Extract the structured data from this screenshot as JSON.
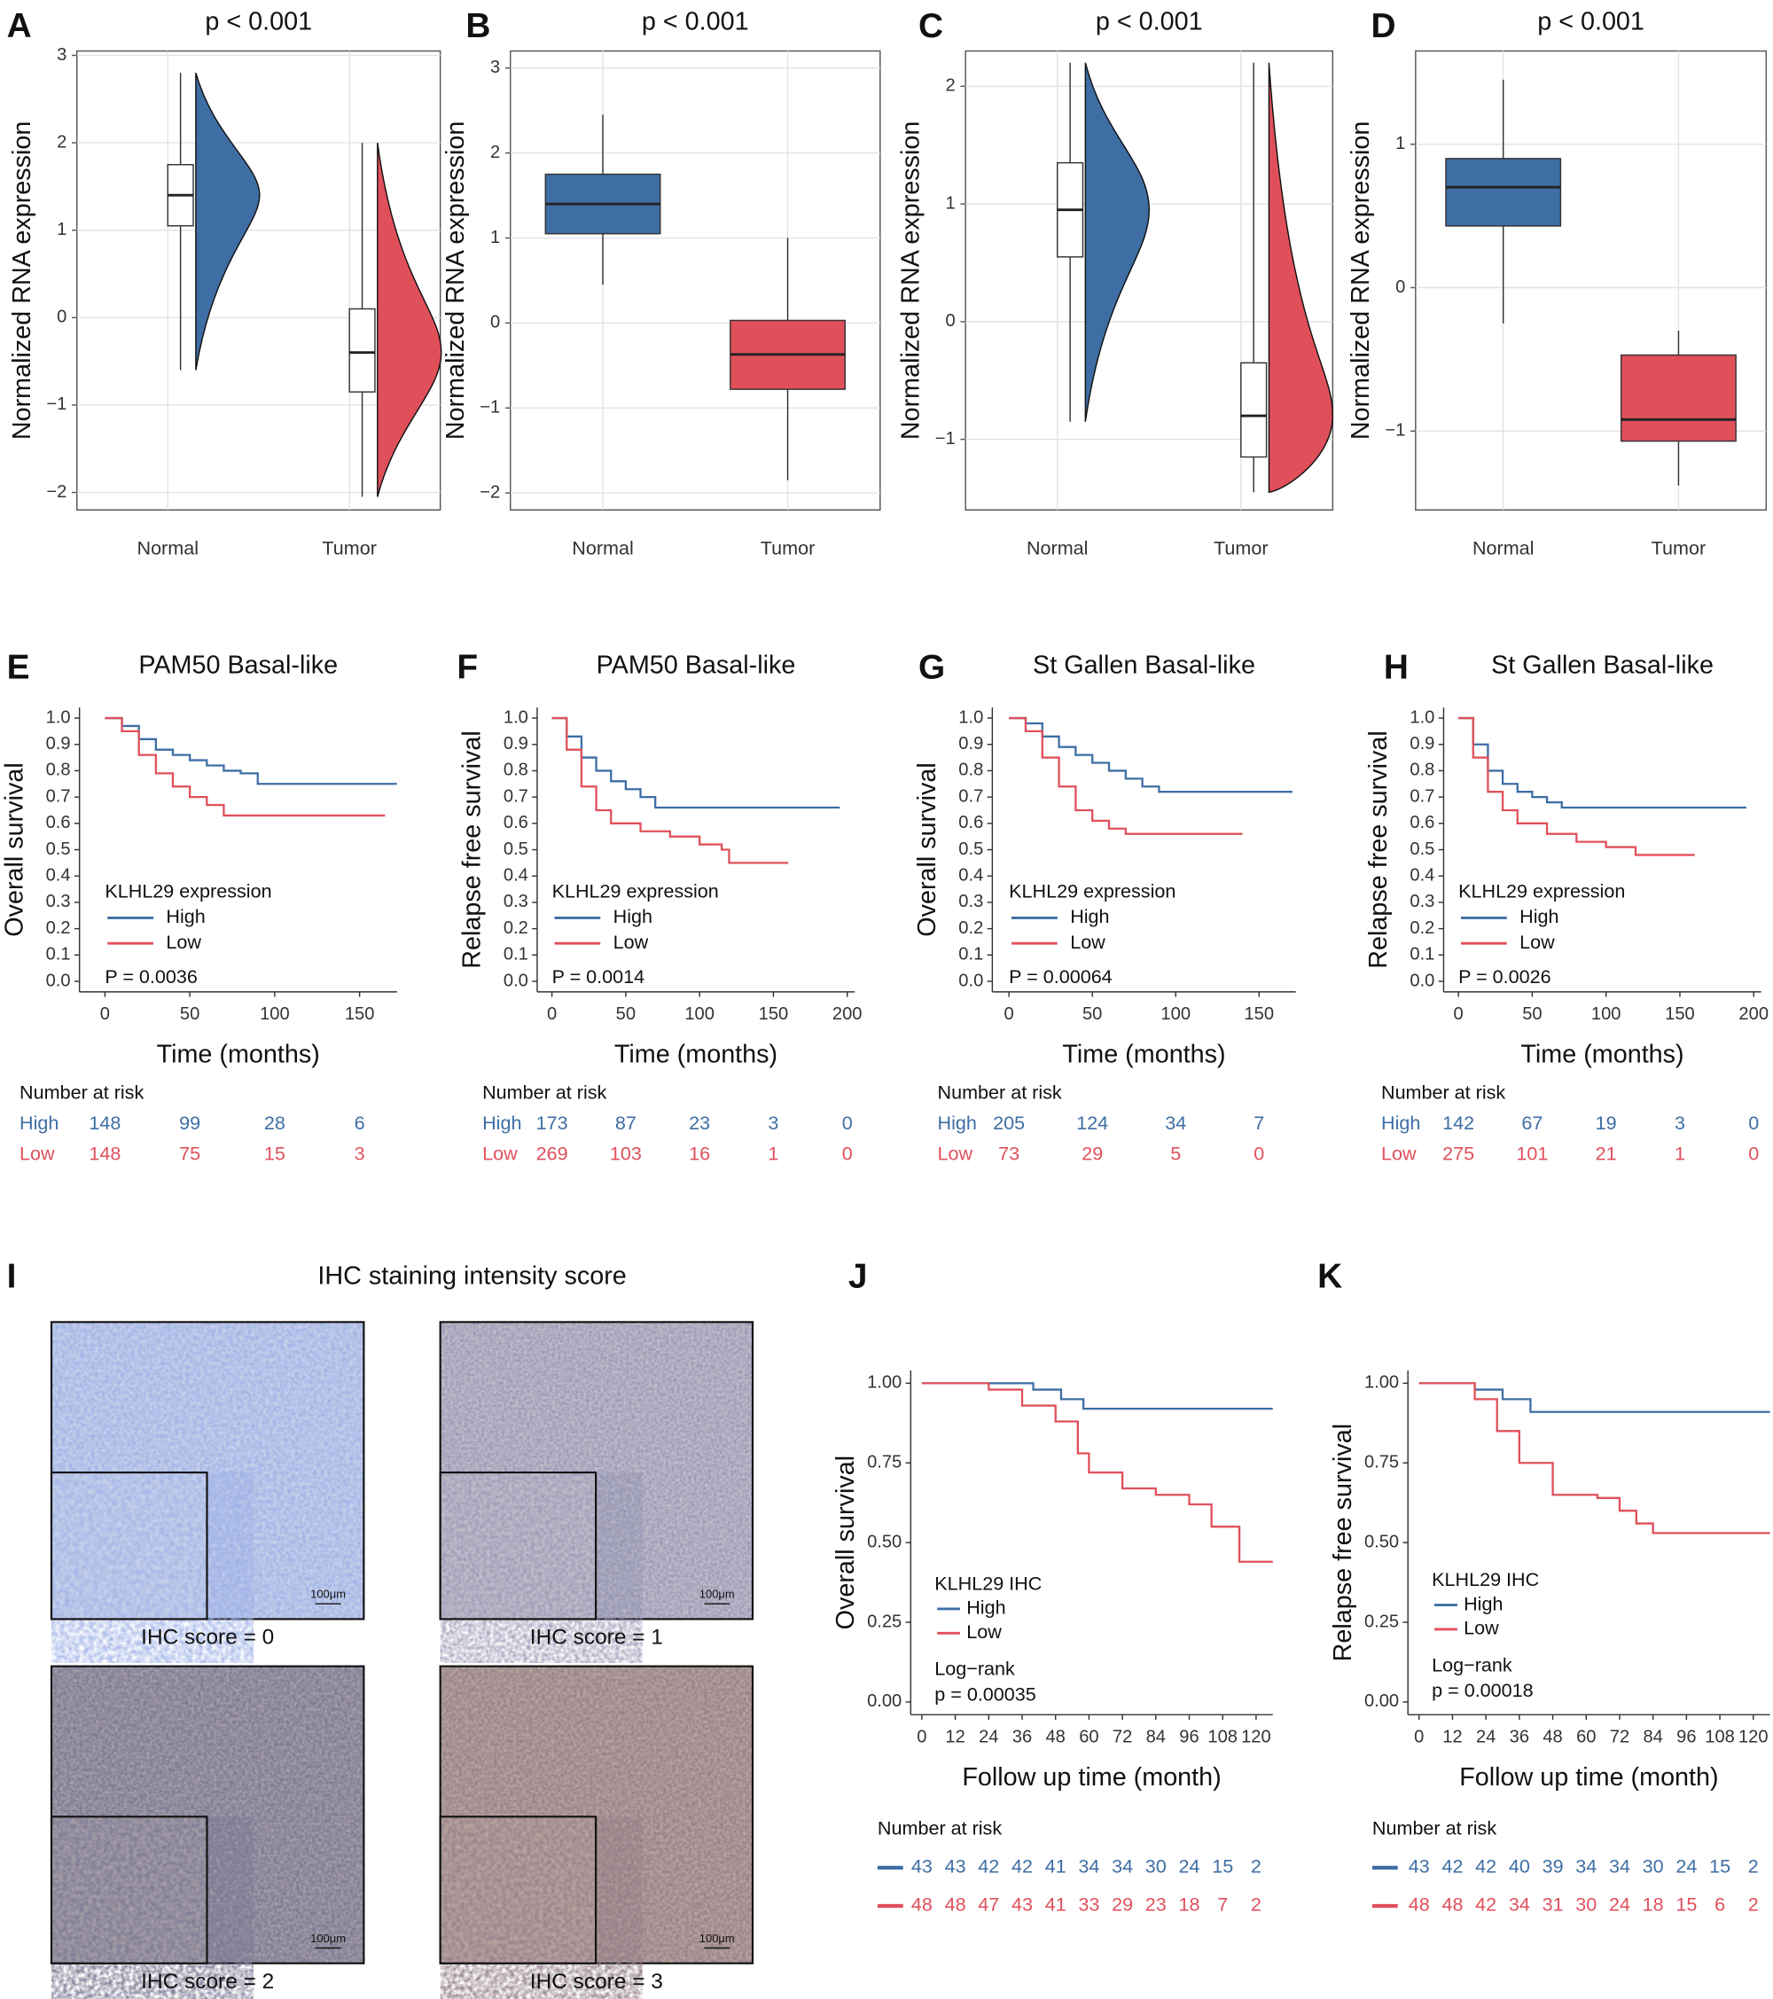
{
  "chart_data": [
    {
      "type": "box",
      "style": "raincloud",
      "panel_label": "A",
      "title": "p < 0.001",
      "ylabel": "Normalized RNA expression",
      "categories": [
        "Normal",
        "Tumor"
      ],
      "colors": [
        "#3e6ea4",
        "#e0505b"
      ],
      "boxes": [
        {
          "min": -0.6,
          "q1": 1.05,
          "median": 1.4,
          "q3": 1.75,
          "max": 2.8
        },
        {
          "min": -2.05,
          "q1": -0.85,
          "median": -0.4,
          "q3": 0.1,
          "max": 2.0
        }
      ],
      "ylim": [
        -2.2,
        3.05
      ],
      "yticks": [
        {
          "value": -2,
          "label": "−2"
        },
        {
          "value": -1,
          "label": "−1"
        },
        0,
        1,
        2,
        3
      ],
      "grid": true
    },
    {
      "type": "box",
      "style": "paired",
      "panel_label": "B",
      "title": "p < 0.001",
      "ylabel": "Normalized RNA expression",
      "categories": [
        "Normal",
        "Tumor"
      ],
      "colors": [
        "#3e6ea4",
        "#e0505b"
      ],
      "boxes": [
        {
          "min": 0.45,
          "q1": 1.05,
          "median": 1.4,
          "q3": 1.75,
          "max": 2.45
        },
        {
          "min": -1.85,
          "q1": -0.78,
          "median": -0.37,
          "q3": 0.03,
          "max": 1.0
        }
      ],
      "ylim": [
        -2.2,
        3.2
      ],
      "yticks": [
        {
          "value": -2,
          "label": "−2"
        },
        {
          "value": -1,
          "label": "−1"
        },
        0,
        1,
        2,
        3
      ],
      "grid": true
    },
    {
      "type": "box",
      "style": "raincloud",
      "panel_label": "C",
      "title": "p < 0.001",
      "ylabel": "Normalized RNA expression",
      "categories": [
        "Normal",
        "Tumor"
      ],
      "colors": [
        "#3e6ea4",
        "#e0505b"
      ],
      "boxes": [
        {
          "min": -0.85,
          "q1": 0.55,
          "median": 0.95,
          "q3": 1.35,
          "max": 2.2
        },
        {
          "min": -1.45,
          "q1": -1.15,
          "median": -0.8,
          "q3": -0.35,
          "max": 2.2
        }
      ],
      "ylim": [
        -1.6,
        2.3
      ],
      "yticks": [
        {
          "value": -1,
          "label": "−1"
        },
        0,
        1,
        2
      ],
      "grid": true
    },
    {
      "type": "box",
      "style": "paired",
      "panel_label": "D",
      "title": "p < 0.001",
      "ylabel": "Normalized RNA expression",
      "categories": [
        "Normal",
        "Tumor"
      ],
      "colors": [
        "#3e6ea4",
        "#e0505b"
      ],
      "boxes": [
        {
          "min": -0.25,
          "q1": 0.43,
          "median": 0.7,
          "q3": 0.9,
          "max": 1.45
        },
        {
          "min": -1.38,
          "q1": -1.07,
          "median": -0.92,
          "q3": -0.47,
          "max": -0.3
        }
      ],
      "ylim": [
        -1.55,
        1.65
      ],
      "yticks": [
        {
          "value": -1,
          "label": "−1"
        },
        0,
        1
      ],
      "grid": true
    },
    {
      "type": "km",
      "panel_label": "E",
      "title": "PAM50 Basal-like",
      "ylabel": "Overall survival",
      "xlabel": "Time (months)",
      "legend_title": "KLHL29 expression",
      "p_value": "P = 0.0036",
      "series": [
        {
          "name": "High",
          "color": "#3e6ea4",
          "x": [
            0,
            10,
            20,
            30,
            40,
            50,
            60,
            70,
            80,
            90,
            100,
            172
          ],
          "y": [
            1,
            0.97,
            0.92,
            0.88,
            0.86,
            0.84,
            0.82,
            0.8,
            0.79,
            0.75,
            0.75,
            0.75
          ]
        },
        {
          "name": "Low",
          "color": "#e0505b",
          "x": [
            0,
            10,
            20,
            30,
            40,
            50,
            60,
            70,
            80,
            165
          ],
          "y": [
            1,
            0.95,
            0.86,
            0.79,
            0.74,
            0.7,
            0.67,
            0.63,
            0.63,
            0.63
          ]
        }
      ],
      "xlim": [
        -15,
        172
      ],
      "xticks": [
        0,
        50,
        100,
        150
      ],
      "ylim": [
        -0.04,
        1.04
      ],
      "yticks": [
        {
          "value": 0,
          "label": "0.0"
        },
        {
          "value": 0.1,
          "label": "0.1"
        },
        {
          "value": 0.2,
          "label": "0.2"
        },
        {
          "value": 0.3,
          "label": "0.3"
        },
        {
          "value": 0.4,
          "label": "0.4"
        },
        {
          "value": 0.5,
          "label": "0.5"
        },
        {
          "value": 0.6,
          "label": "0.6"
        },
        {
          "value": 0.7,
          "label": "0.7"
        },
        {
          "value": 0.8,
          "label": "0.8"
        },
        {
          "value": 0.9,
          "label": "0.9"
        },
        {
          "value": 1,
          "label": "1.0"
        }
      ],
      "risk_title": "Number at risk",
      "risk_row_labels": true,
      "risk": [
        [
          148,
          99,
          28,
          6
        ],
        [
          148,
          75,
          15,
          3
        ]
      ]
    },
    {
      "type": "km",
      "panel_label": "F",
      "title": "PAM50 Basal-like",
      "ylabel": "Relapse free survival",
      "xlabel": "Time (months)",
      "legend_title": "KLHL29 expression",
      "p_value": "P = 0.0014",
      "series": [
        {
          "name": "High",
          "color": "#3e6ea4",
          "x": [
            0,
            10,
            20,
            30,
            40,
            50,
            60,
            70,
            80,
            195
          ],
          "y": [
            1,
            0.93,
            0.85,
            0.8,
            0.76,
            0.73,
            0.7,
            0.66,
            0.66,
            0.66
          ]
        },
        {
          "name": "Low",
          "color": "#e0505b",
          "x": [
            0,
            10,
            20,
            30,
            40,
            60,
            80,
            100,
            115,
            120,
            160
          ],
          "y": [
            1,
            0.88,
            0.74,
            0.65,
            0.6,
            0.57,
            0.55,
            0.52,
            0.5,
            0.45,
            0.45
          ]
        }
      ],
      "xlim": [
        -10,
        205
      ],
      "xticks": [
        0,
        50,
        100,
        150,
        200
      ],
      "ylim": [
        -0.04,
        1.04
      ],
      "yticks": [
        {
          "value": 0,
          "label": "0.0"
        },
        {
          "value": 0.1,
          "label": "0.1"
        },
        {
          "value": 0.2,
          "label": "0.2"
        },
        {
          "value": 0.3,
          "label": "0.3"
        },
        {
          "value": 0.4,
          "label": "0.4"
        },
        {
          "value": 0.5,
          "label": "0.5"
        },
        {
          "value": 0.6,
          "label": "0.6"
        },
        {
          "value": 0.7,
          "label": "0.7"
        },
        {
          "value": 0.8,
          "label": "0.8"
        },
        {
          "value": 0.9,
          "label": "0.9"
        },
        {
          "value": 1,
          "label": "1.0"
        }
      ],
      "risk_title": "Number at risk",
      "risk_row_labels": true,
      "risk": [
        [
          173,
          87,
          23,
          3,
          0
        ],
        [
          269,
          103,
          16,
          1,
          0
        ]
      ]
    },
    {
      "type": "km",
      "panel_label": "G",
      "title": "St Gallen Basal-like",
      "ylabel": "Overall survival",
      "xlabel": "Time (months)",
      "legend_title": "KLHL29 expression",
      "p_value": "P = 0.00064",
      "series": [
        {
          "name": "High",
          "color": "#3e6ea4",
          "x": [
            0,
            10,
            20,
            30,
            40,
            50,
            60,
            70,
            80,
            90,
            170
          ],
          "y": [
            1,
            0.98,
            0.93,
            0.89,
            0.86,
            0.83,
            0.8,
            0.77,
            0.74,
            0.72,
            0.72
          ]
        },
        {
          "name": "Low",
          "color": "#e0505b",
          "x": [
            0,
            10,
            20,
            30,
            40,
            50,
            60,
            70,
            140
          ],
          "y": [
            1,
            0.95,
            0.85,
            0.74,
            0.65,
            0.61,
            0.58,
            0.56,
            0.56
          ]
        }
      ],
      "xlim": [
        -10,
        172
      ],
      "xticks": [
        0,
        50,
        100,
        150
      ],
      "ylim": [
        -0.04,
        1.04
      ],
      "yticks": [
        {
          "value": 0,
          "label": "0.0"
        },
        {
          "value": 0.1,
          "label": "0.1"
        },
        {
          "value": 0.2,
          "label": "0.2"
        },
        {
          "value": 0.3,
          "label": "0.3"
        },
        {
          "value": 0.4,
          "label": "0.4"
        },
        {
          "value": 0.5,
          "label": "0.5"
        },
        {
          "value": 0.6,
          "label": "0.6"
        },
        {
          "value": 0.7,
          "label": "0.7"
        },
        {
          "value": 0.8,
          "label": "0.8"
        },
        {
          "value": 0.9,
          "label": "0.9"
        },
        {
          "value": 1,
          "label": "1.0"
        }
      ],
      "risk_title": "Number at risk",
      "risk_row_labels": true,
      "risk": [
        [
          205,
          124,
          34,
          7
        ],
        [
          73,
          29,
          5,
          0
        ]
      ]
    },
    {
      "type": "km",
      "panel_label": "H",
      "title": "St Gallen Basal-like",
      "ylabel": "Relapse free survival",
      "xlabel": "Time (months)",
      "legend_title": "KLHL29 expression",
      "p_value": "P = 0.0026",
      "series": [
        {
          "name": "High",
          "color": "#3e6ea4",
          "x": [
            0,
            10,
            20,
            30,
            40,
            50,
            60,
            70,
            195
          ],
          "y": [
            1,
            0.9,
            0.8,
            0.75,
            0.72,
            0.7,
            0.68,
            0.66,
            0.66
          ]
        },
        {
          "name": "Low",
          "color": "#e0505b",
          "x": [
            0,
            10,
            20,
            30,
            40,
            60,
            80,
            100,
            120,
            160
          ],
          "y": [
            1,
            0.85,
            0.72,
            0.65,
            0.6,
            0.56,
            0.53,
            0.51,
            0.48,
            0.48
          ]
        }
      ],
      "xlim": [
        -10,
        205
      ],
      "xticks": [
        0,
        50,
        100,
        150,
        200
      ],
      "ylim": [
        -0.04,
        1.04
      ],
      "yticks": [
        {
          "value": 0,
          "label": "0.0"
        },
        {
          "value": 0.1,
          "label": "0.1"
        },
        {
          "value": 0.2,
          "label": "0.2"
        },
        {
          "value": 0.3,
          "label": "0.3"
        },
        {
          "value": 0.4,
          "label": "0.4"
        },
        {
          "value": 0.5,
          "label": "0.5"
        },
        {
          "value": 0.6,
          "label": "0.6"
        },
        {
          "value": 0.7,
          "label": "0.7"
        },
        {
          "value": 0.8,
          "label": "0.8"
        },
        {
          "value": 0.9,
          "label": "0.9"
        },
        {
          "value": 1,
          "label": "1.0"
        }
      ],
      "risk_title": "Number at risk",
      "risk_row_labels": true,
      "risk": [
        [
          142,
          67,
          19,
          3,
          0
        ],
        [
          275,
          101,
          21,
          1,
          0
        ]
      ]
    },
    {
      "type": "km",
      "panel_label": "J",
      "ylabel": "Overall survival",
      "xlabel": "Follow up time (month)",
      "legend_title": "KLHL29 IHC",
      "test": "Log−rank",
      "p_value": "p = 0.00035",
      "series": [
        {
          "name": "High",
          "color": "#3e6ea4",
          "x": [
            0,
            28,
            40,
            50,
            58,
            126
          ],
          "y": [
            1,
            1,
            0.98,
            0.95,
            0.92,
            0.92
          ]
        },
        {
          "name": "Low",
          "color": "#e0505b",
          "x": [
            0,
            12,
            24,
            36,
            48,
            56,
            60,
            72,
            84,
            96,
            104,
            114,
            126
          ],
          "y": [
            1,
            1,
            0.98,
            0.93,
            0.88,
            0.78,
            0.72,
            0.67,
            0.65,
            0.62,
            0.55,
            0.44,
            0.44
          ]
        }
      ],
      "xlim": [
        -4,
        126
      ],
      "xticks": [
        0,
        12,
        24,
        36,
        48,
        60,
        72,
        84,
        96,
        108,
        120
      ],
      "ylim": [
        -0.04,
        1.04
      ],
      "yticks": [
        {
          "value": 0,
          "label": "0.00"
        },
        {
          "value": 0.25,
          "label": "0.25"
        },
        {
          "value": 0.5,
          "label": "0.50"
        },
        {
          "value": 0.75,
          "label": "0.75"
        },
        {
          "value": 1,
          "label": "1.00"
        }
      ],
      "risk_title": "Number at risk",
      "risk_row_labels": false,
      "risk": [
        [
          43,
          43,
          42,
          42,
          41,
          34,
          34,
          30,
          24,
          15,
          2
        ],
        [
          48,
          48,
          47,
          43,
          41,
          33,
          29,
          23,
          18,
          7,
          2
        ]
      ]
    },
    {
      "type": "km",
      "panel_label": "K",
      "ylabel": "Relapse free survival",
      "xlabel": "Follow up time (month)",
      "legend_title": "KLHL29 IHC",
      "test": "Log−rank",
      "p_value": "p = 0.00018",
      "series": [
        {
          "name": "High",
          "color": "#3e6ea4",
          "x": [
            0,
            12,
            20,
            30,
            40,
            126
          ],
          "y": [
            1,
            1,
            0.98,
            0.95,
            0.91,
            0.91
          ]
        },
        {
          "name": "Low",
          "color": "#e0505b",
          "x": [
            0,
            12,
            20,
            28,
            36,
            48,
            64,
            72,
            78,
            84,
            126
          ],
          "y": [
            1,
            1,
            0.95,
            0.85,
            0.75,
            0.65,
            0.64,
            0.6,
            0.56,
            0.53,
            0.53
          ]
        }
      ],
      "xlim": [
        -4,
        126
      ],
      "xticks": [
        0,
        12,
        24,
        36,
        48,
        60,
        72,
        84,
        96,
        108,
        120
      ],
      "ylim": [
        -0.04,
        1.04
      ],
      "yticks": [
        {
          "value": 0,
          "label": "0.00"
        },
        {
          "value": 0.25,
          "label": "0.25"
        },
        {
          "value": 0.5,
          "label": "0.50"
        },
        {
          "value": 0.75,
          "label": "0.75"
        },
        {
          "value": 1,
          "label": "1.00"
        }
      ],
      "risk_title": "Number at risk",
      "risk_row_labels": false,
      "risk": [
        [
          43,
          42,
          42,
          40,
          39,
          34,
          34,
          30,
          24,
          15,
          2
        ],
        [
          48,
          48,
          42,
          34,
          31,
          30,
          24,
          18,
          15,
          6,
          2
        ]
      ]
    }
  ],
  "ihc": {
    "panel_label": "I",
    "title": "IHC staining intensity score",
    "images": [
      {
        "label": "IHC score = 0",
        "scale_bar": "100μm"
      },
      {
        "label": "IHC score = 1",
        "scale_bar": "100μm"
      },
      {
        "label": "IHC score = 2",
        "scale_bar": "100μm"
      },
      {
        "label": "IHC score = 3",
        "scale_bar": "100μm"
      }
    ]
  }
}
